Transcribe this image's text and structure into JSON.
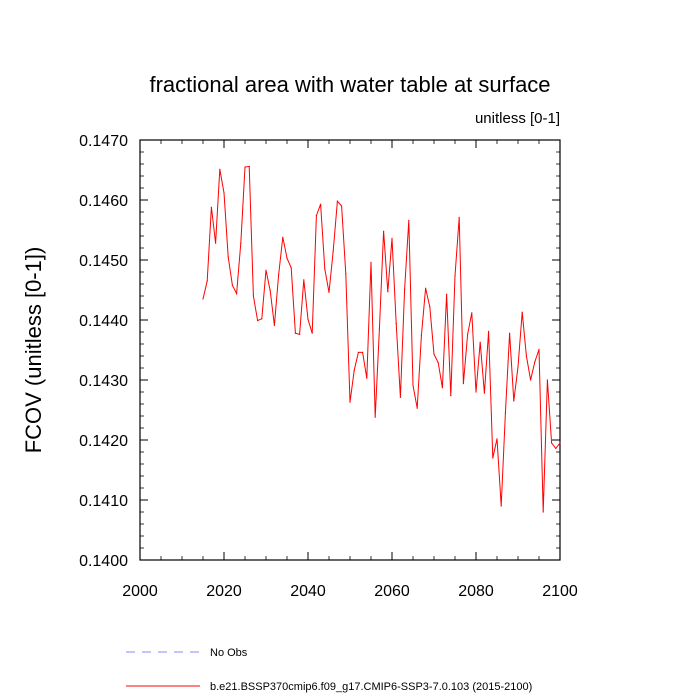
{
  "chart_data": {
    "type": "line",
    "title": "fractional area with water table at surface",
    "units_label": "unitless [0-1]",
    "ylabel": "FCOV  (unitless [0-1])",
    "xlabel": "",
    "xlim": [
      2000,
      2100
    ],
    "ylim": [
      0.14,
      0.147
    ],
    "x_ticks": [
      2000,
      2020,
      2040,
      2060,
      2080,
      2100
    ],
    "x_tick_labels": [
      "2000",
      "2020",
      "2040",
      "2060",
      "2080",
      "2100"
    ],
    "y_ticks": [
      0.14,
      0.141,
      0.142,
      0.143,
      0.144,
      0.145,
      0.146,
      0.147
    ],
    "y_tick_labels": [
      "0.1400",
      "0.1410",
      "0.1420",
      "0.1430",
      "0.1440",
      "0.1450",
      "0.1460",
      "0.1470"
    ],
    "series": [
      {
        "name": "b.e21.BSSP370cmip6.f09_g17.CMIP6-SSP3-7.0.103 (2015-2100)",
        "color": "#ff0000",
        "dash": "solid",
        "x": [
          2015,
          2016,
          2017,
          2018,
          2019,
          2020,
          2021,
          2022,
          2023,
          2024,
          2025,
          2026,
          2027,
          2028,
          2029,
          2030,
          2031,
          2032,
          2033,
          2034,
          2035,
          2036,
          2037,
          2038,
          2039,
          2040,
          2041,
          2042,
          2043,
          2044,
          2045,
          2046,
          2047,
          2048,
          2049,
          2050,
          2051,
          2052,
          2053,
          2054,
          2055,
          2056,
          2057,
          2058,
          2059,
          2060,
          2061,
          2062,
          2063,
          2064,
          2065,
          2066,
          2067,
          2068,
          2069,
          2070,
          2071,
          2072,
          2073,
          2074,
          2075,
          2076,
          2077,
          2078,
          2079,
          2080,
          2081,
          2082,
          2083,
          2084,
          2085,
          2086,
          2087,
          2088,
          2089,
          2090,
          2091,
          2092,
          2093,
          2094,
          2095,
          2096,
          2097,
          2098,
          2099,
          2100
        ],
        "values": [
          0.14435,
          0.14465,
          0.14588,
          0.14528,
          0.14651,
          0.14612,
          0.14505,
          0.14458,
          0.14444,
          0.14528,
          0.14655,
          0.14656,
          0.1444,
          0.14399,
          0.14402,
          0.14483,
          0.14449,
          0.14391,
          0.14475,
          0.14538,
          0.14503,
          0.14487,
          0.14378,
          0.14376,
          0.14467,
          0.14401,
          0.14378,
          0.14574,
          0.14593,
          0.14485,
          0.14446,
          0.14515,
          0.14598,
          0.1459,
          0.14477,
          0.14263,
          0.14316,
          0.14346,
          0.14346,
          0.14303,
          0.14496,
          0.14238,
          0.14385,
          0.14548,
          0.14447,
          0.14536,
          0.14394,
          0.14271,
          0.14451,
          0.14566,
          0.14291,
          0.14253,
          0.14374,
          0.14453,
          0.14422,
          0.14343,
          0.14329,
          0.14287,
          0.14443,
          0.14274,
          0.14474,
          0.14571,
          0.14294,
          0.14376,
          0.14412,
          0.1428,
          0.14363,
          0.14278,
          0.14381,
          0.1417,
          0.14202,
          0.1409,
          0.14245,
          0.14378,
          0.14265,
          0.14322,
          0.14413,
          0.1434,
          0.143,
          0.1433,
          0.14351,
          0.1408,
          0.143,
          0.14195,
          0.14186,
          0.14195
        ]
      }
    ],
    "legend": [
      {
        "label": "No Obs",
        "color": "#8a8aff",
        "dash": "dashed"
      },
      {
        "label": "b.e21.BSSP370cmip6.f09_g17.CMIP6-SSP3-7.0.103 (2015-2100)",
        "color": "#ff0000",
        "dash": "solid"
      }
    ],
    "legend_position": "bottom-left"
  }
}
